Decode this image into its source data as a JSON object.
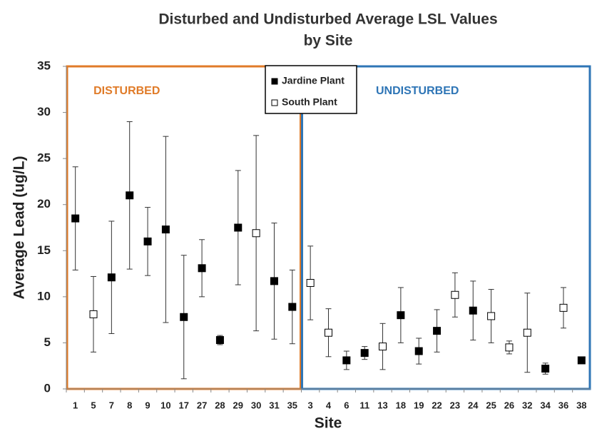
{
  "chart_data": {
    "type": "errorbar",
    "title": [
      "Disturbed and Undisturbed Average LSL Values",
      "by Site"
    ],
    "x_label": "Site",
    "y_label": "Average Lead (ug/L)",
    "categories": [
      "1",
      "5",
      "7",
      "8",
      "9",
      "10",
      "17",
      "27",
      "28",
      "29",
      "30",
      "31",
      "35",
      "3",
      "4",
      "6",
      "11",
      "13",
      "18",
      "19",
      "22",
      "23",
      "24",
      "25",
      "26",
      "32",
      "34",
      "36",
      "38"
    ],
    "series": [
      {
        "name": "Jardine Plant",
        "color": "#000000",
        "filled": true,
        "values": [
          18.5,
          null,
          12.1,
          21,
          16,
          17.3,
          7.8,
          13.1,
          5.3,
          17.5,
          null,
          11.7,
          8.9,
          null,
          null,
          3.1,
          3.9,
          null,
          8,
          4.1,
          6.3,
          null,
          8.5,
          null,
          null,
          null,
          2.2,
          null,
          3.1
        ],
        "errors": [
          5.6,
          null,
          6.1,
          8,
          3.7,
          10.1,
          6.7,
          3.1,
          0.5,
          6.2,
          null,
          6.3,
          4,
          null,
          null,
          1,
          0.7,
          null,
          3,
          1.4,
          2.3,
          null,
          3.2,
          null,
          null,
          null,
          0.6,
          null,
          0.3
        ]
      },
      {
        "name": "South Plant",
        "color": "#000000",
        "filled": false,
        "values": [
          null,
          8.1,
          null,
          null,
          null,
          null,
          null,
          null,
          null,
          null,
          16.9,
          null,
          null,
          11.5,
          6.1,
          null,
          null,
          4.6,
          null,
          null,
          null,
          10.2,
          null,
          7.9,
          4.5,
          6.1,
          null,
          8.8,
          null
        ],
        "errors": [
          null,
          4.1,
          null,
          null,
          null,
          null,
          null,
          null,
          null,
          null,
          10.6,
          null,
          null,
          4,
          2.6,
          null,
          null,
          2.5,
          null,
          null,
          null,
          2.4,
          null,
          2.9,
          0.7,
          4.3,
          null,
          2.2,
          null
        ]
      }
    ],
    "regions": [
      {
        "label": "DISTURBED",
        "color": "#e07b28",
        "from": "1",
        "to": "35"
      },
      {
        "label": "UNDISTURBED",
        "color": "#2e75b6",
        "from": "3",
        "to": "38"
      }
    ],
    "ylim": [
      0,
      35
    ],
    "yticks": [
      0,
      5,
      10,
      15,
      20,
      25,
      30,
      35
    ]
  }
}
